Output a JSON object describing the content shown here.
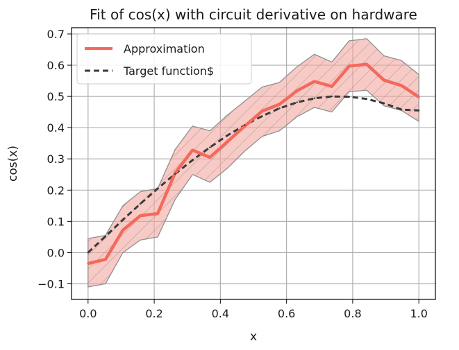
{
  "chart_data": {
    "type": "line",
    "title": "Fit of cos(x) with circuit derivative on hardware",
    "xlabel": "x",
    "ylabel": "cos(x)",
    "xlim": [
      -0.05,
      1.05
    ],
    "ylim": [
      -0.15,
      0.72
    ],
    "xticks": [
      0.0,
      0.2,
      0.4,
      0.6,
      0.8,
      1.0
    ],
    "xtick_labels": [
      "0.0",
      "0.2",
      "0.4",
      "0.6",
      "0.8",
      "1.0"
    ],
    "yticks": [
      -0.1,
      0.0,
      0.1,
      0.2,
      0.3,
      0.4,
      0.5,
      0.6,
      0.7
    ],
    "ytick_labels": [
      "−0.1",
      "0.0",
      "0.1",
      "0.2",
      "0.3",
      "0.4",
      "0.5",
      "0.6",
      "0.7"
    ],
    "grid": true,
    "legend_position": "upper-left",
    "x": [
      0.0,
      0.0526,
      0.1053,
      0.1579,
      0.2105,
      0.2632,
      0.3158,
      0.3684,
      0.4211,
      0.4737,
      0.5263,
      0.5789,
      0.6316,
      0.6842,
      0.7368,
      0.7895,
      0.8421,
      0.8947,
      0.9474,
      1.0
    ],
    "series": [
      {
        "name": "Approximation",
        "color": "#f4695c",
        "style": "solid",
        "values": [
          -0.035,
          -0.022,
          0.072,
          0.118,
          0.125,
          0.255,
          0.328,
          0.305,
          0.355,
          0.405,
          0.453,
          0.475,
          0.518,
          0.548,
          0.532,
          0.597,
          0.603,
          0.552,
          0.535,
          0.498
        ]
      },
      {
        "name": "Target function$",
        "color": "#3a3a3a",
        "style": "dashed",
        "values": [
          0.0,
          0.052,
          0.105,
          0.156,
          0.205,
          0.252,
          0.296,
          0.337,
          0.375,
          0.408,
          0.437,
          0.462,
          0.481,
          0.494,
          0.5,
          0.499,
          0.492,
          0.478,
          0.458,
          0.455
        ]
      }
    ],
    "band": {
      "of_series": "Approximation",
      "fill": "#f4a6a0",
      "edge": "#8f8f8f",
      "hatch": "diagonal",
      "upper": [
        0.045,
        0.055,
        0.15,
        0.195,
        0.205,
        0.33,
        0.405,
        0.39,
        0.44,
        0.485,
        0.53,
        0.545,
        0.595,
        0.635,
        0.61,
        0.678,
        0.685,
        0.63,
        0.615,
        0.57
      ],
      "lower": [
        -0.11,
        -0.1,
        0.0,
        0.04,
        0.05,
        0.17,
        0.25,
        0.225,
        0.27,
        0.325,
        0.372,
        0.39,
        0.435,
        0.465,
        0.45,
        0.515,
        0.52,
        0.47,
        0.455,
        0.42
      ]
    }
  }
}
